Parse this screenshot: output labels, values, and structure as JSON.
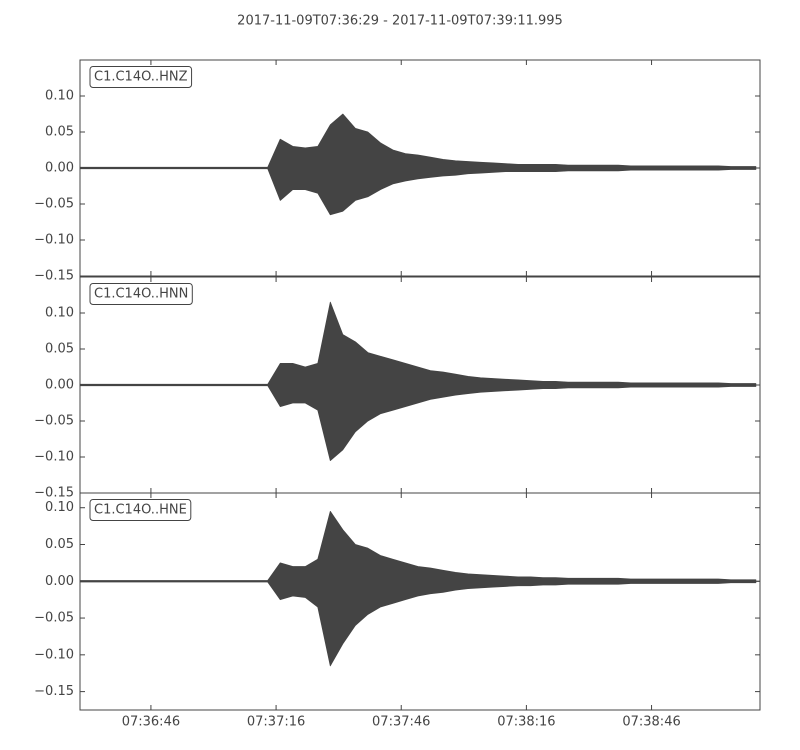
{
  "chart_data": {
    "type": "seismogram",
    "title": "2017-11-09T07:36:29  -  2017-11-09T07:39:11.995",
    "color": "#444444",
    "xlim": [
      "07:36:29",
      "07:39:11.995"
    ],
    "xticks": [
      "07:36:46",
      "07:37:16",
      "07:37:46",
      "07:38:16",
      "07:38:46"
    ],
    "x": [
      "07:36:29",
      "07:36:32",
      "07:36:35",
      "07:36:38",
      "07:36:41",
      "07:36:44",
      "07:36:47",
      "07:36:50",
      "07:36:53",
      "07:36:56",
      "07:36:59",
      "07:37:02",
      "07:37:05",
      "07:37:08",
      "07:37:11",
      "07:37:14",
      "07:37:17",
      "07:37:20",
      "07:37:23",
      "07:37:26",
      "07:37:29",
      "07:37:32",
      "07:37:35",
      "07:37:38",
      "07:37:41",
      "07:37:44",
      "07:37:47",
      "07:37:50",
      "07:37:53",
      "07:37:56",
      "07:37:59",
      "07:38:02",
      "07:38:05",
      "07:38:08",
      "07:38:11",
      "07:38:14",
      "07:38:17",
      "07:38:20",
      "07:38:23",
      "07:38:26",
      "07:38:29",
      "07:38:32",
      "07:38:35",
      "07:38:38",
      "07:38:41",
      "07:38:44",
      "07:38:47",
      "07:38:50",
      "07:38:53",
      "07:38:56",
      "07:38:59",
      "07:39:02",
      "07:39:05",
      "07:39:08",
      "07:39:11"
    ],
    "panels": [
      {
        "label": "C1.C14O..HNZ",
        "ylim": [
          -0.15,
          0.15
        ],
        "yticks": [
          {
            "value": -0.15,
            "label": "−0.15"
          },
          {
            "value": -0.1,
            "label": "−0.10"
          },
          {
            "value": -0.05,
            "label": "−0.05"
          },
          {
            "value": 0,
            "label": "0.00"
          },
          {
            "value": 0.05,
            "label": "0.05"
          },
          {
            "value": 0.1,
            "label": "0.10"
          }
        ],
        "series": [
          {
            "values": [
              0.001,
              0.001,
              0.001,
              0.001,
              0.001,
              0.001,
              0.001,
              0.001,
              0.001,
              0.001,
              0.001,
              0.001,
              0.001,
              0.001,
              0.001,
              0.001,
              0.04,
              0.03,
              0.028,
              0.03,
              0.06,
              0.075,
              0.055,
              0.05,
              0.035,
              0.025,
              0.02,
              0.018,
              0.015,
              0.012,
              0.01,
              0.009,
              0.008,
              0.007,
              0.006,
              0.005,
              0.005,
              0.005,
              0.005,
              0.004,
              0.004,
              0.004,
              0.004,
              0.004,
              0.003,
              0.003,
              0.003,
              0.003,
              0.003,
              0.003,
              0.003,
              0.003,
              0.002,
              0.002,
              0.002
            ]
          },
          {
            "values": [
              -0.001,
              -0.001,
              -0.001,
              -0.001,
              -0.001,
              -0.001,
              -0.001,
              -0.001,
              -0.001,
              -0.001,
              -0.001,
              -0.001,
              -0.001,
              -0.001,
              -0.001,
              -0.001,
              -0.045,
              -0.03,
              -0.03,
              -0.035,
              -0.065,
              -0.06,
              -0.045,
              -0.04,
              -0.03,
              -0.022,
              -0.018,
              -0.015,
              -0.013,
              -0.011,
              -0.01,
              -0.008,
              -0.007,
              -0.006,
              -0.005,
              -0.005,
              -0.005,
              -0.005,
              -0.005,
              -0.004,
              -0.004,
              -0.004,
              -0.004,
              -0.004,
              -0.003,
              -0.003,
              -0.003,
              -0.003,
              -0.003,
              -0.003,
              -0.003,
              -0.003,
              -0.002,
              -0.002,
              -0.002
            ]
          }
        ]
      },
      {
        "label": "C1.C14O..HNN",
        "ylim": [
          -0.15,
          0.15
        ],
        "yticks": [
          {
            "value": -0.15,
            "label": "−0.15"
          },
          {
            "value": -0.1,
            "label": "−0.10"
          },
          {
            "value": -0.05,
            "label": "−0.05"
          },
          {
            "value": 0,
            "label": "0.00"
          },
          {
            "value": 0.05,
            "label": "0.05"
          },
          {
            "value": 0.1,
            "label": "0.10"
          }
        ],
        "series": [
          {
            "values": [
              0.001,
              0.001,
              0.001,
              0.001,
              0.001,
              0.001,
              0.001,
              0.001,
              0.001,
              0.001,
              0.001,
              0.001,
              0.001,
              0.001,
              0.001,
              0.001,
              0.03,
              0.03,
              0.025,
              0.03,
              0.115,
              0.07,
              0.06,
              0.045,
              0.04,
              0.035,
              0.03,
              0.025,
              0.02,
              0.018,
              0.015,
              0.012,
              0.01,
              0.009,
              0.008,
              0.007,
              0.006,
              0.005,
              0.005,
              0.004,
              0.004,
              0.004,
              0.004,
              0.004,
              0.003,
              0.003,
              0.003,
              0.003,
              0.003,
              0.003,
              0.003,
              0.003,
              0.002,
              0.002,
              0.002
            ]
          },
          {
            "values": [
              -0.001,
              -0.001,
              -0.001,
              -0.001,
              -0.001,
              -0.001,
              -0.001,
              -0.001,
              -0.001,
              -0.001,
              -0.001,
              -0.001,
              -0.001,
              -0.001,
              -0.001,
              -0.001,
              -0.03,
              -0.025,
              -0.025,
              -0.035,
              -0.105,
              -0.09,
              -0.065,
              -0.05,
              -0.04,
              -0.035,
              -0.03,
              -0.025,
              -0.02,
              -0.017,
              -0.014,
              -0.012,
              -0.01,
              -0.009,
              -0.008,
              -0.007,
              -0.006,
              -0.005,
              -0.005,
              -0.004,
              -0.004,
              -0.004,
              -0.004,
              -0.004,
              -0.003,
              -0.003,
              -0.003,
              -0.003,
              -0.003,
              -0.003,
              -0.003,
              -0.003,
              -0.002,
              -0.002,
              -0.002
            ]
          }
        ]
      },
      {
        "label": "C1.C14O..HNE",
        "ylim": [
          -0.175,
          0.12
        ],
        "yticks": [
          {
            "value": -0.15,
            "label": "−0.15"
          },
          {
            "value": -0.1,
            "label": "−0.10"
          },
          {
            "value": -0.05,
            "label": "−0.05"
          },
          {
            "value": 0,
            "label": "0.00"
          },
          {
            "value": 0.05,
            "label": "0.05"
          },
          {
            "value": 0.1,
            "label": "0.10"
          }
        ],
        "series": [
          {
            "values": [
              0.001,
              0.001,
              0.001,
              0.001,
              0.001,
              0.001,
              0.001,
              0.001,
              0.001,
              0.001,
              0.001,
              0.001,
              0.001,
              0.001,
              0.001,
              0.001,
              0.025,
              0.02,
              0.02,
              0.03,
              0.095,
              0.07,
              0.05,
              0.045,
              0.035,
              0.03,
              0.025,
              0.02,
              0.018,
              0.015,
              0.012,
              0.01,
              0.009,
              0.008,
              0.007,
              0.006,
              0.006,
              0.005,
              0.005,
              0.004,
              0.004,
              0.004,
              0.004,
              0.004,
              0.003,
              0.003,
              0.003,
              0.003,
              0.003,
              0.003,
              0.003,
              0.003,
              0.002,
              0.002,
              0.002
            ]
          },
          {
            "values": [
              -0.001,
              -0.001,
              -0.001,
              -0.001,
              -0.001,
              -0.001,
              -0.001,
              -0.001,
              -0.001,
              -0.001,
              -0.001,
              -0.001,
              -0.001,
              -0.001,
              -0.001,
              -0.001,
              -0.025,
              -0.02,
              -0.022,
              -0.035,
              -0.115,
              -0.085,
              -0.06,
              -0.045,
              -0.035,
              -0.03,
              -0.025,
              -0.02,
              -0.017,
              -0.015,
              -0.012,
              -0.01,
              -0.009,
              -0.008,
              -0.007,
              -0.006,
              -0.006,
              -0.005,
              -0.005,
              -0.004,
              -0.004,
              -0.004,
              -0.004,
              -0.004,
              -0.003,
              -0.003,
              -0.003,
              -0.003,
              -0.003,
              -0.003,
              -0.003,
              -0.003,
              -0.002,
              -0.002,
              -0.002
            ]
          }
        ]
      }
    ]
  }
}
